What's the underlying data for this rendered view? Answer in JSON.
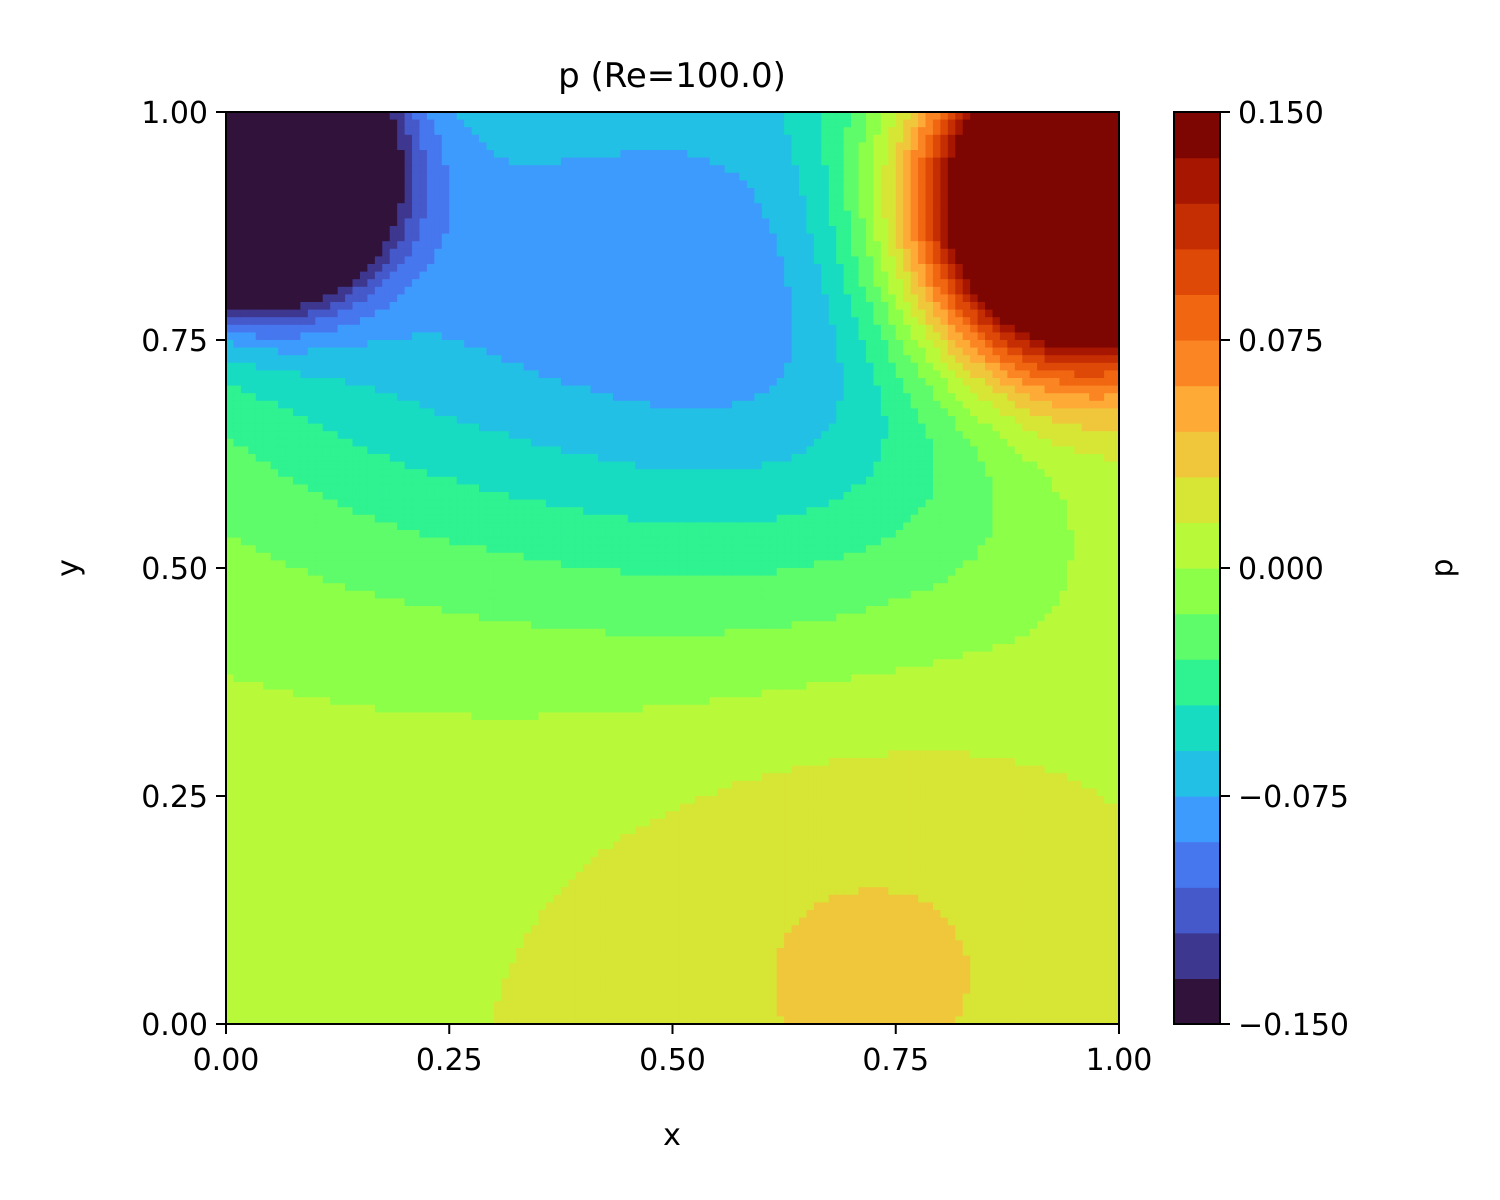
{
  "chart_data": {
    "type": "heatmap",
    "title": "p (Re=100.0)",
    "xlabel": "x",
    "ylabel": "y",
    "xlim": [
      0,
      1
    ],
    "ylim": [
      0,
      1
    ],
    "x_ticks": [
      "0.00",
      "0.25",
      "0.50",
      "0.75",
      "1.00"
    ],
    "y_ticks": [
      "0.00",
      "0.25",
      "0.50",
      "0.75",
      "1.00"
    ],
    "colorbar": {
      "label": "p",
      "range": [
        -0.15,
        0.15
      ],
      "ticks": [
        "−0.150",
        "−0.075",
        "0.000",
        "0.075",
        "0.150"
      ],
      "levels": 20,
      "colors": [
        "#30123b",
        "#3e378f",
        "#4559cb",
        "#4777ef",
        "#3e9bfe",
        "#22c0e4",
        "#18dcc2",
        "#2ff291",
        "#5efb6a",
        "#8cff49",
        "#b8fa3a",
        "#d7e535",
        "#f0c73a",
        "#fdaa36",
        "#fb8522",
        "#f06611",
        "#de4908",
        "#c52d02",
        "#a61601",
        "#7e0602"
      ]
    },
    "field_features": [
      {
        "x": 0.03,
        "y": 0.94,
        "amplitude": -0.48,
        "sigma": 0.085
      },
      {
        "x": 0.95,
        "y": 0.9,
        "amplitude": 0.4,
        "sigma": 0.12
      },
      {
        "x": 0.6,
        "y": 0.76,
        "amplitude": -0.065,
        "sigma": 0.22
      },
      {
        "x": 0.2,
        "y": 0.8,
        "amplitude": -0.045,
        "sigma": 0.2
      },
      {
        "x": 0.72,
        "y": 0.1,
        "amplitude": 0.022,
        "sigma": 0.22
      },
      {
        "x": 1.0,
        "y": 0.55,
        "amplitude": 0.01,
        "sigma": 0.08
      }
    ]
  }
}
